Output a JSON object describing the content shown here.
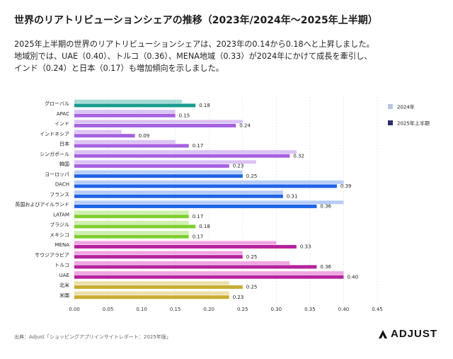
{
  "header": {
    "title": "世界のリアトリビューションシェアの推移（2023年/2024年〜2025年上半期）",
    "subtitle_lines": [
      "2025年上半期の世界のリアトリビューションシェアは、2023年の0.14から0.18へと上昇しました。",
      "地域別では、UAE（0.40）、トルコ（0.36）、MENA地域（0.33）が2024年にかけて成長を牽引し、",
      "インド（0.24）と日本（0.17）も増加傾向を示しました。"
    ]
  },
  "footer": {
    "source": "出典：Adjust「ショッピングアプリインサイトレポート：2025年版」",
    "logo_text": "ADJUST"
  },
  "chart_data": {
    "type": "bar",
    "orientation": "horizontal",
    "categories": [
      "グローバル",
      "APAC",
      "インド",
      "インドネシア",
      "日本",
      "シンガポール",
      "韓国",
      "ヨーロッパ",
      "DACH",
      "フランス",
      "英国およびアイルランド",
      "LATAM",
      "ブラジル",
      "メキシコ",
      "MENA",
      "サウジアラビア",
      "トルコ",
      "UAE",
      "北米",
      "米国"
    ],
    "series": [
      {
        "name": "2024年",
        "values": [
          0.16,
          0.15,
          0.25,
          0.07,
          0.15,
          0.33,
          0.27,
          0.25,
          0.4,
          0.31,
          0.4,
          0.17,
          0.17,
          0.17,
          0.3,
          0.25,
          0.32,
          0.4,
          0.23,
          0.23
        ],
        "show_labels": false
      },
      {
        "name": "2025年上半期",
        "values": [
          0.18,
          0.15,
          0.24,
          0.09,
          0.17,
          0.32,
          0.23,
          0.25,
          0.39,
          0.31,
          0.36,
          0.17,
          0.18,
          0.17,
          0.33,
          0.25,
          0.36,
          0.4,
          0.25,
          0.23
        ],
        "show_labels": true
      }
    ],
    "group_colors": [
      "#1a9b8f",
      "#a561e0",
      "#a561e0",
      "#a561e0",
      "#a561e0",
      "#a561e0",
      "#a561e0",
      "#1f63e6",
      "#1f63e6",
      "#1f63e6",
      "#1f63e6",
      "#7fcf2f",
      "#7fcf2f",
      "#7fcf2f",
      "#b5229c",
      "#b5229c",
      "#b5229c",
      "#b5229c",
      "#c9ad34",
      "#c9ad34"
    ],
    "group_colors_light": [
      "#a3dad4",
      "#dcc3f5",
      "#dcc3f5",
      "#dcc3f5",
      "#dcc3f5",
      "#dcc3f5",
      "#dcc3f5",
      "#b7cdf7",
      "#b7cdf7",
      "#b7cdf7",
      "#b7cdf7",
      "#cfeeb0",
      "#cfeeb0",
      "#cfeeb0",
      "#f0a6e2",
      "#f0a6e2",
      "#f0a6e2",
      "#f0a6e2",
      "#ece0a8",
      "#ece0a8"
    ],
    "xlim": [
      0,
      0.45
    ],
    "xticks": [
      "0.00",
      "0.05",
      "0.10",
      "0.15",
      "0.20",
      "0.25",
      "0.30",
      "0.35",
      "0.40",
      "0.45"
    ],
    "grid": "vertical dashed",
    "legend": {
      "position": "right",
      "entries": [
        {
          "label": "2024年",
          "color": "#b9c7de"
        },
        {
          "label": "2025年上半期",
          "color": "#2b2f6b"
        }
      ]
    }
  }
}
